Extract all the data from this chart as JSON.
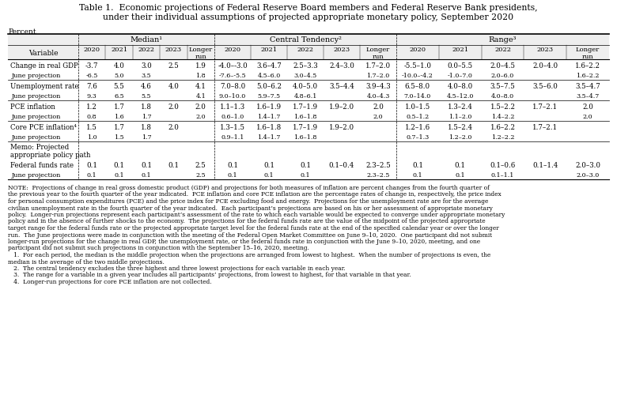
{
  "title_line1": "Table 1.  Economic projections of Federal Reserve Board members and Federal Reserve Bank presidents,",
  "title_line2": "under their individual assumptions of projected appropriate monetary policy, September 2020",
  "percent_label": "Percent",
  "rows": [
    {
      "label": "Change in real GDP",
      "is_june": false,
      "median": [
        "-3.7",
        "4.0",
        "3.0",
        "2.5",
        "1.9"
      ],
      "central": [
        "-4.0–-3.0",
        "3.6–4.7",
        "2.5–3.3",
        "2.4–3.0",
        "1.7–2.0"
      ],
      "range_vals": [
        "-5.5–1.0",
        "0.0–5.5",
        "2.0–4.5",
        "2.0–4.0",
        "1.6–2.2"
      ]
    },
    {
      "label": "June projection",
      "is_june": true,
      "median": [
        "-6.5",
        "5.0",
        "3.5",
        "",
        "1.8"
      ],
      "central": [
        "-7.6–-5.5",
        "4.5–6.0",
        "3.0–4.5",
        "",
        "1.7–2.0"
      ],
      "range_vals": [
        "-10.0–-4.2",
        "-1.0–7.0",
        "2.0–6.0",
        "",
        "1.6–2.2"
      ]
    },
    {
      "label": "Unemployment rate",
      "is_june": false,
      "median": [
        "7.6",
        "5.5",
        "4.6",
        "4.0",
        "4.1"
      ],
      "central": [
        "7.0–8.0",
        "5.0–6.2",
        "4.0–5.0",
        "3.5–4.4",
        "3.9–4.3"
      ],
      "range_vals": [
        "6.5–8.0",
        "4.0–8.0",
        "3.5–7.5",
        "3.5–6.0",
        "3.5–4.7"
      ]
    },
    {
      "label": "June projection",
      "is_june": true,
      "median": [
        "9.3",
        "6.5",
        "5.5",
        "",
        "4.1"
      ],
      "central": [
        "9.0–10.0",
        "5.9–7.5",
        "4.8–6.1",
        "",
        "4.0–4.3"
      ],
      "range_vals": [
        "7.0–14.0",
        "4.5–12.0",
        "4.0–8.0",
        "",
        "3.5–4.7"
      ]
    },
    {
      "label": "PCE inflation",
      "is_june": false,
      "median": [
        "1.2",
        "1.7",
        "1.8",
        "2.0",
        "2.0"
      ],
      "central": [
        "1.1–1.3",
        "1.6–1.9",
        "1.7–1.9",
        "1.9–2.0",
        "2.0"
      ],
      "range_vals": [
        "1.0–1.5",
        "1.3–2.4",
        "1.5–2.2",
        "1.7–2.1",
        "2.0"
      ]
    },
    {
      "label": "June projection",
      "is_june": true,
      "median": [
        "0.8",
        "1.6",
        "1.7",
        "",
        "2.0"
      ],
      "central": [
        "0.6–1.0",
        "1.4–1.7",
        "1.6–1.8",
        "",
        "2.0"
      ],
      "range_vals": [
        "0.5–1.2",
        "1.1–2.0",
        "1.4–2.2",
        "",
        "2.0"
      ]
    },
    {
      "label": "Core PCE inflation⁴",
      "is_june": false,
      "median": [
        "1.5",
        "1.7",
        "1.8",
        "2.0",
        ""
      ],
      "central": [
        "1.3–1.5",
        "1.6–1.8",
        "1.7–1.9",
        "1.9–2.0",
        ""
      ],
      "range_vals": [
        "1.2–1.6",
        "1.5–2.4",
        "1.6–2.2",
        "1.7–2.1",
        ""
      ]
    },
    {
      "label": "June projection",
      "is_june": true,
      "median": [
        "1.0",
        "1.5",
        "1.7",
        "",
        ""
      ],
      "central": [
        "0.9–1.1",
        "1.4–1.7",
        "1.6–1.8",
        "",
        ""
      ],
      "range_vals": [
        "0.7–1.3",
        "1.2–2.0",
        "1.2–2.2",
        "",
        ""
      ]
    }
  ],
  "memo_rows": [
    {
      "label": "Federal funds rate",
      "is_june": false,
      "median": [
        "0.1",
        "0.1",
        "0.1",
        "0.1",
        "2.5"
      ],
      "central": [
        "0.1",
        "0.1",
        "0.1",
        "0.1–0.4",
        "2.3–2.5"
      ],
      "range_vals": [
        "0.1",
        "0.1",
        "0.1–0.6",
        "0.1–1.4",
        "2.0–3.0"
      ]
    },
    {
      "label": "June projection",
      "is_june": true,
      "median": [
        "0.1",
        "0.1",
        "0.1",
        "",
        "2.5"
      ],
      "central": [
        "0.1",
        "0.1",
        "0.1",
        "",
        "2.3–2.5"
      ],
      "range_vals": [
        "0.1",
        "0.1",
        "0.1–1.1",
        "",
        "2.0–3.0"
      ]
    }
  ],
  "notes": [
    "NOTE:  Projections of change in real gross domestic product (GDP) and projections for both measures of inflation are percent changes from the fourth quarter of",
    "the previous year to the fourth quarter of the year indicated.  PCE inflation and core PCE inflation are the percentage rates of change in, respectively, the price index",
    "for personal consumption expenditures (PCE) and the price index for PCE excluding food and energy.  Projections for the unemployment rate are for the average",
    "civilian unemployment rate in the fourth quarter of the year indicated.  Each participant’s projections are based on his or her assessment of appropriate monetary",
    "policy.  Longer-run projections represent each participant’s assessment of the rate to which each variable would be expected to converge under appropriate monetary",
    "policy and in the absence of further shocks to the economy.  The projections for the federal funds rate are the value of the midpoint of the projected appropriate",
    "target range for the federal funds rate or the projected appropriate target level for the federal funds rate at the end of the specified calendar year or over the longer",
    "run.  The June projections were made in conjunction with the meeting of the Federal Open Market Committee on June 9–10, 2020.  One participant did not submit",
    "longer-run projections for the change in real GDP, the unemployment rate, or the federal funds rate in conjunction with the June 9–10, 2020, meeting, and one",
    "participant did not submit such projections in conjunction with the September 15–16, 2020, meeting.",
    "   1.  For each period, the median is the middle projection when the projections are arranged from lowest to highest.  When the number of projections is even, the",
    "median is the average of the two middle projections.",
    "   2.  The central tendency excludes the three highest and three lowest projections for each variable in each year.",
    "   3.  The range for a variable in a given year includes all participants’ projections, from lowest to highest, for that variable in that year.",
    "   4.  Longer-run projections for core PCE inflation are not collected."
  ],
  "bg_color": "#ffffff"
}
